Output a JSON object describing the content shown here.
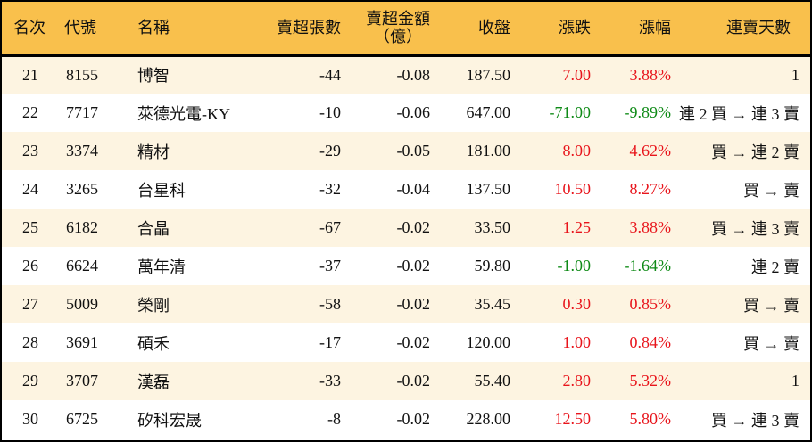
{
  "table": {
    "headers": {
      "rank": "名次",
      "code": "代號",
      "name": "名稱",
      "net_sell_volume": "賣超張數",
      "net_sell_amount_line1": "賣超金額",
      "net_sell_amount_line2": "（億）",
      "close": "收盤",
      "change": "漲跌",
      "change_pct": "漲幅",
      "streak": "連賣天數"
    },
    "colors": {
      "header_bg": "#f9c04c",
      "row_odd_bg": "#fdf4e1",
      "row_even_bg": "#ffffff",
      "up": "#e8141b",
      "down": "#0e8a16"
    },
    "rows": [
      {
        "rank": "21",
        "code": "8155",
        "name": "博智",
        "volume": "-44",
        "amount": "-0.08",
        "close": "187.50",
        "change": "7.00",
        "pct": "3.88%",
        "direction": "up",
        "streak": "1"
      },
      {
        "rank": "22",
        "code": "7717",
        "name": "萊德光電-KY",
        "volume": "-10",
        "amount": "-0.06",
        "close": "647.00",
        "change": "-71.00",
        "pct": "-9.89%",
        "direction": "down",
        "streak": "連 2 買 → 連 3 賣"
      },
      {
        "rank": "23",
        "code": "3374",
        "name": "精材",
        "volume": "-29",
        "amount": "-0.05",
        "close": "181.00",
        "change": "8.00",
        "pct": "4.62%",
        "direction": "up",
        "streak": "買 → 連 2 賣"
      },
      {
        "rank": "24",
        "code": "3265",
        "name": "台星科",
        "volume": "-32",
        "amount": "-0.04",
        "close": "137.50",
        "change": "10.50",
        "pct": "8.27%",
        "direction": "up",
        "streak": "買 → 賣"
      },
      {
        "rank": "25",
        "code": "6182",
        "name": "合晶",
        "volume": "-67",
        "amount": "-0.02",
        "close": "33.50",
        "change": "1.25",
        "pct": "3.88%",
        "direction": "up",
        "streak": "買 → 連 3 賣"
      },
      {
        "rank": "26",
        "code": "6624",
        "name": "萬年清",
        "volume": "-37",
        "amount": "-0.02",
        "close": "59.80",
        "change": "-1.00",
        "pct": "-1.64%",
        "direction": "down",
        "streak": "連 2 賣"
      },
      {
        "rank": "27",
        "code": "5009",
        "name": "榮剛",
        "volume": "-58",
        "amount": "-0.02",
        "close": "35.45",
        "change": "0.30",
        "pct": "0.85%",
        "direction": "up",
        "streak": "買 → 賣"
      },
      {
        "rank": "28",
        "code": "3691",
        "name": "碩禾",
        "volume": "-17",
        "amount": "-0.02",
        "close": "120.00",
        "change": "1.00",
        "pct": "0.84%",
        "direction": "up",
        "streak": "買 → 賣"
      },
      {
        "rank": "29",
        "code": "3707",
        "name": "漢磊",
        "volume": "-33",
        "amount": "-0.02",
        "close": "55.40",
        "change": "2.80",
        "pct": "5.32%",
        "direction": "up",
        "streak": "1"
      },
      {
        "rank": "30",
        "code": "6725",
        "name": "矽科宏晟",
        "volume": "-8",
        "amount": "-0.02",
        "close": "228.00",
        "change": "12.50",
        "pct": "5.80%",
        "direction": "up",
        "streak": "買 → 連 3 賣"
      }
    ]
  }
}
